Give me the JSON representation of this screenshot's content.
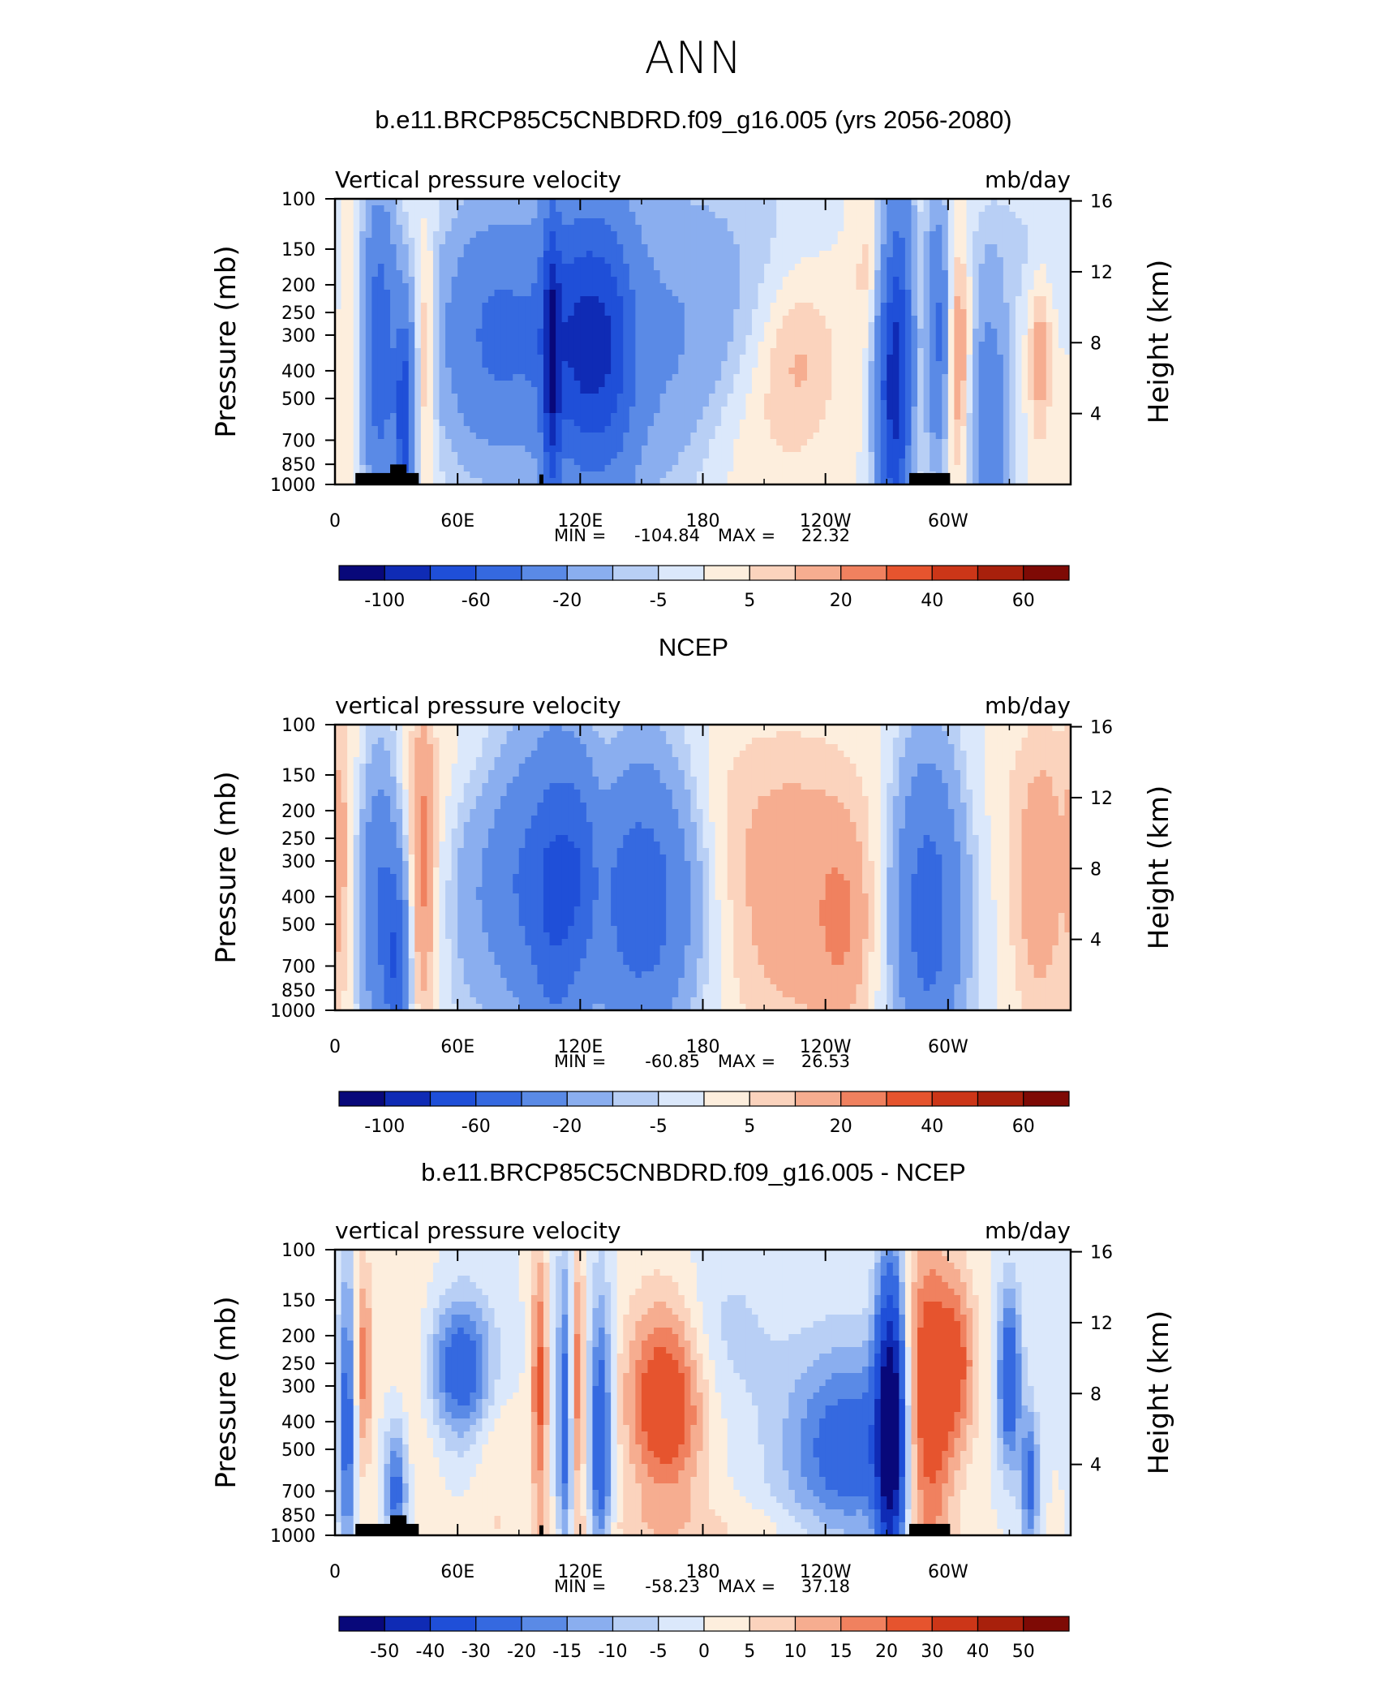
{
  "page": {
    "title": "ANN"
  },
  "chart_data": [
    {
      "type": "heatmap",
      "title": "b.e11.BRCP85C5CNBDRD.f09_g16.005 (yrs 2056-2080)",
      "left_label": "Vertical pressure velocity",
      "right_label": "mb/day",
      "ylabel": "Pressure (mb)",
      "ylabel_right": "Height (km)",
      "xticks": [
        "0",
        "60E",
        "120E",
        "180",
        "120W",
        "60W"
      ],
      "yticks": [
        "100",
        "150",
        "200",
        "250",
        "300",
        "400",
        "500",
        "700",
        "850",
        "1000"
      ],
      "yticks_right": [
        "16",
        "12",
        "8",
        "4"
      ],
      "stats": {
        "min_label": "MIN =",
        "min": "-104.84",
        "max_label": "MAX =",
        "max": "22.32"
      },
      "colorbar": {
        "labels": [
          "-100",
          "-60",
          "-20",
          "-5",
          "5",
          "20",
          "40",
          "60"
        ]
      },
      "colors": [
        "#08087a",
        "#0f2bb5",
        "#1f4fd8",
        "#3569e0",
        "#5a8ae6",
        "#8aaeef",
        "#b8cff5",
        "#dbe8fb",
        "#fdeedd",
        "#fbd3bd",
        "#f6ad90",
        "#f0815f",
        "#e6542e",
        "#cc3618",
        "#a8200c",
        "#7e0a05"
      ]
    },
    {
      "type": "heatmap",
      "title": "NCEP",
      "left_label": "vertical pressure velocity",
      "right_label": "mb/day",
      "ylabel": "Pressure (mb)",
      "ylabel_right": "Height (km)",
      "xticks": [
        "0",
        "60E",
        "120E",
        "180",
        "120W",
        "60W"
      ],
      "yticks": [
        "100",
        "150",
        "200",
        "250",
        "300",
        "400",
        "500",
        "700",
        "850",
        "1000"
      ],
      "yticks_right": [
        "16",
        "12",
        "8",
        "4"
      ],
      "stats": {
        "min_label": "MIN =",
        "min": "-60.85",
        "max_label": "MAX =",
        "max": "26.53"
      },
      "colorbar": {
        "labels": [
          "-100",
          "-60",
          "-20",
          "-5",
          "5",
          "20",
          "40",
          "60"
        ]
      },
      "colors": [
        "#08087a",
        "#0f2bb5",
        "#1f4fd8",
        "#3569e0",
        "#5a8ae6",
        "#8aaeef",
        "#b8cff5",
        "#dbe8fb",
        "#fdeedd",
        "#fbd3bd",
        "#f6ad90",
        "#f0815f",
        "#e6542e",
        "#cc3618",
        "#a8200c",
        "#7e0a05"
      ]
    },
    {
      "type": "heatmap",
      "title": "b.e11.BRCP85C5CNBDRD.f09_g16.005 - NCEP",
      "left_label": "vertical pressure velocity",
      "right_label": "mb/day",
      "ylabel": "Pressure (mb)",
      "ylabel_right": "Height (km)",
      "xticks": [
        "0",
        "60E",
        "120E",
        "180",
        "120W",
        "60W"
      ],
      "yticks": [
        "100",
        "150",
        "200",
        "250",
        "300",
        "400",
        "500",
        "700",
        "850",
        "1000"
      ],
      "yticks_right": [
        "16",
        "12",
        "8",
        "4"
      ],
      "stats": {
        "min_label": "MIN =",
        "min": "-58.23",
        "max_label": "MAX =",
        "max": "37.18"
      },
      "colorbar": {
        "labels": [
          "-50",
          "-40",
          "-30",
          "-20",
          "-15",
          "-10",
          "-5",
          "0",
          "5",
          "10",
          "15",
          "20",
          "30",
          "40",
          "50"
        ]
      },
      "colors": [
        "#08087a",
        "#0f2bb5",
        "#1f4fd8",
        "#3569e0",
        "#5a8ae6",
        "#8aaeef",
        "#b8cff5",
        "#dbe8fb",
        "#fdeedd",
        "#fbd3bd",
        "#f6ad90",
        "#f0815f",
        "#e6542e",
        "#cc3618",
        "#a8200c",
        "#7e0a05"
      ]
    }
  ]
}
